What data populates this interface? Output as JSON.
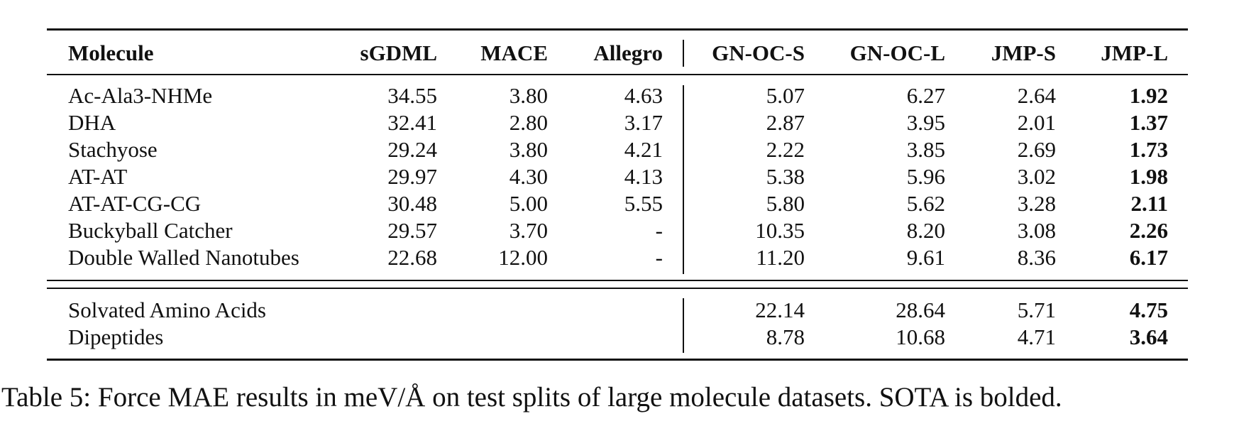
{
  "table": {
    "headers": [
      "Molecule",
      "sGDML",
      "MACE",
      "Allegro",
      "GN-OC-S",
      "GN-OC-L",
      "JMP-S",
      "JMP-L"
    ],
    "rows": [
      {
        "name": "Ac-Ala3-NHMe",
        "sgdml": "34.55",
        "mace": "3.80",
        "allegro": "4.63",
        "gnocs": "5.07",
        "gnocl": "6.27",
        "jmps": "2.64",
        "jmpl": "1.92"
      },
      {
        "name": "DHA",
        "sgdml": "32.41",
        "mace": "2.80",
        "allegro": "3.17",
        "gnocs": "2.87",
        "gnocl": "3.95",
        "jmps": "2.01",
        "jmpl": "1.37"
      },
      {
        "name": "Stachyose",
        "sgdml": "29.24",
        "mace": "3.80",
        "allegro": "4.21",
        "gnocs": "2.22",
        "gnocl": "3.85",
        "jmps": "2.69",
        "jmpl": "1.73"
      },
      {
        "name": "AT-AT",
        "sgdml": "29.97",
        "mace": "4.30",
        "allegro": "4.13",
        "gnocs": "5.38",
        "gnocl": "5.96",
        "jmps": "3.02",
        "jmpl": "1.98"
      },
      {
        "name": "AT-AT-CG-CG",
        "sgdml": "30.48",
        "mace": "5.00",
        "allegro": "5.55",
        "gnocs": "5.80",
        "gnocl": "5.62",
        "jmps": "3.28",
        "jmpl": "2.11"
      },
      {
        "name": "Buckyball Catcher",
        "sgdml": "29.57",
        "mace": "3.70",
        "allegro": "-",
        "gnocs": "10.35",
        "gnocl": "8.20",
        "jmps": "3.08",
        "jmpl": "2.26"
      },
      {
        "name": "Double Walled Nanotubes",
        "sgdml": "22.68",
        "mace": "12.00",
        "allegro": "-",
        "gnocs": "11.20",
        "gnocl": "9.61",
        "jmps": "8.36",
        "jmpl": "6.17"
      }
    ],
    "rows2": [
      {
        "name": "Solvated Amino Acids",
        "gnocs": "22.14",
        "gnocl": "28.64",
        "jmps": "5.71",
        "jmpl": "4.75"
      },
      {
        "name": "Dipeptides",
        "gnocs": "8.78",
        "gnocl": "10.68",
        "jmps": "4.71",
        "jmpl": "3.64"
      }
    ]
  },
  "caption": "Table 5: Force MAE results in meV/Å on test splits of large molecule datasets. SOTA is bolded."
}
